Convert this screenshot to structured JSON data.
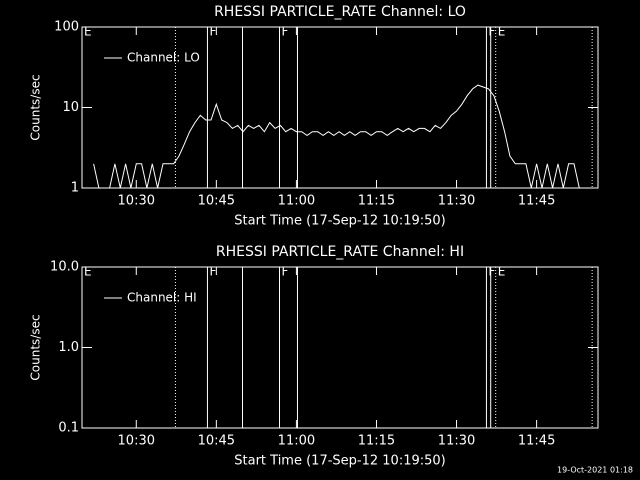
{
  "chart_data": [
    {
      "type": "line",
      "title": "RHESSI PARTICLE_RATE Channel: LO",
      "y_label": "Counts/sec",
      "x_label": "Start Time (17-Sep-12 10:19:50)",
      "y_log": true,
      "ylim": [
        1,
        100
      ],
      "yticks": [
        1,
        10,
        100
      ],
      "xlim": [
        "10:19:50",
        "11:56:30"
      ],
      "xticks": [
        "10:30",
        "10:45",
        "11:00",
        "11:15",
        "11:30",
        "11:45"
      ],
      "legend": "upper left",
      "markers": [
        {
          "x": "10:19:50",
          "style": "solid",
          "label": "E"
        },
        {
          "x": "10:37:20",
          "style": "dotted"
        },
        {
          "x": "10:43:20",
          "style": "solid",
          "label": "F"
        },
        {
          "x": "10:49:54",
          "style": "solid"
        },
        {
          "x": "10:56:50",
          "style": "solid",
          "label": "F"
        },
        {
          "x": "11:00:12",
          "style": "solid"
        },
        {
          "x": "11:35:36",
          "style": "solid",
          "label": "F"
        },
        {
          "x": "11:36:24",
          "style": "solid"
        },
        {
          "x": "11:37:20",
          "style": "dotted",
          "label": "E"
        },
        {
          "x": "11:55:24",
          "style": "dotted"
        }
      ],
      "series": [
        {
          "name": "Channel: LO",
          "color": "#ffffff",
          "x": [
            "10:22",
            "10:23",
            "10:24",
            "10:25",
            "10:26",
            "10:27",
            "10:28",
            "10:29",
            "10:30",
            "10:31",
            "10:32",
            "10:33",
            "10:34",
            "10:35",
            "10:36",
            "10:37",
            "10:38",
            "10:39",
            "10:40",
            "10:41",
            "10:42",
            "10:43",
            "10:44",
            "10:45",
            "10:46",
            "10:47",
            "10:48",
            "10:49",
            "10:50",
            "10:51",
            "10:52",
            "10:53",
            "10:54",
            "10:55",
            "10:56",
            "10:57",
            "10:58",
            "10:59",
            "11:00",
            "11:01",
            "11:02",
            "11:03",
            "11:04",
            "11:05",
            "11:06",
            "11:07",
            "11:08",
            "11:09",
            "11:10",
            "11:11",
            "11:12",
            "11:13",
            "11:14",
            "11:15",
            "11:16",
            "11:17",
            "11:18",
            "11:19",
            "11:20",
            "11:21",
            "11:22",
            "11:23",
            "11:24",
            "11:25",
            "11:26",
            "11:27",
            "11:28",
            "11:29",
            "11:30",
            "11:31",
            "11:32",
            "11:33",
            "11:34",
            "11:35",
            "11:36",
            "11:37",
            "11:38",
            "11:39",
            "11:40",
            "11:41",
            "11:42",
            "11:43",
            "11:44",
            "11:45",
            "11:46",
            "11:47",
            "11:48",
            "11:49",
            "11:50",
            "11:51",
            "11:52",
            "11:53"
          ],
          "values": [
            2,
            1,
            1,
            1,
            2,
            1,
            2,
            1,
            2,
            2,
            1,
            2,
            1,
            2,
            2,
            2,
            2.5,
            3.5,
            5,
            6.5,
            8,
            7,
            7,
            11,
            7,
            6.5,
            5.5,
            6,
            5,
            6,
            5.5,
            6,
            5,
            6.5,
            5.5,
            6,
            5,
            5.5,
            5,
            5,
            4.5,
            5,
            5,
            4.5,
            5,
            4.5,
            5,
            4.5,
            5,
            4.5,
            5,
            5,
            4.5,
            5,
            5,
            4.5,
            5,
            5.5,
            5,
            5.5,
            5,
            5.5,
            5.5,
            5,
            6,
            5.5,
            6.5,
            8,
            9,
            11,
            14,
            17,
            19,
            18,
            17,
            14,
            9,
            5,
            2.5,
            2,
            2,
            2,
            1,
            2,
            1,
            2,
            1,
            2,
            1,
            2,
            2,
            1
          ]
        }
      ]
    },
    {
      "type": "line",
      "title": "RHESSI PARTICLE_RATE Channel: HI",
      "y_label": "Counts/sec",
      "x_label": "Start Time (17-Sep-12 10:19:50)",
      "y_log": true,
      "ylim": [
        0.1,
        10
      ],
      "yticks": [
        {
          "value": 0.1,
          "label": "0.1"
        },
        {
          "value": 1,
          "label": "1.0"
        },
        {
          "value": 10,
          "label": "10.0"
        }
      ],
      "xlim": [
        "10:19:50",
        "11:56:30"
      ],
      "xticks": [
        "10:30",
        "10:45",
        "11:00",
        "11:15",
        "11:30",
        "11:45"
      ],
      "legend": "upper left",
      "markers": [
        {
          "x": "10:19:50",
          "style": "solid",
          "label": "E"
        },
        {
          "x": "10:37:20",
          "style": "dotted"
        },
        {
          "x": "10:43:20",
          "style": "solid",
          "label": "F"
        },
        {
          "x": "10:49:54",
          "style": "solid"
        },
        {
          "x": "10:56:50",
          "style": "solid",
          "label": "F"
        },
        {
          "x": "11:00:12",
          "style": "solid"
        },
        {
          "x": "11:35:36",
          "style": "solid",
          "label": "F"
        },
        {
          "x": "11:36:24",
          "style": "solid"
        },
        {
          "x": "11:37:20",
          "style": "dotted",
          "label": "E"
        },
        {
          "x": "11:55:24",
          "style": "dotted"
        }
      ],
      "series": [
        {
          "name": "Channel: HI",
          "color": "#ffffff",
          "x": [],
          "values": []
        }
      ]
    }
  ],
  "footer": "19-Oct-2021 01:18"
}
